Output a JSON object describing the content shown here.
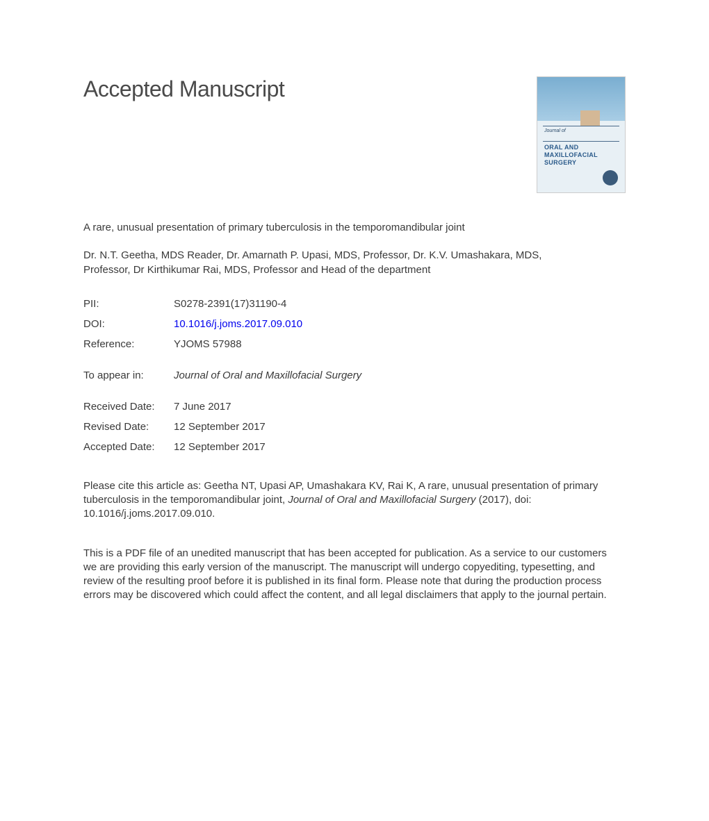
{
  "header": {
    "title": "Accepted Manuscript"
  },
  "cover": {
    "journal_of": "Journal of",
    "line1": "ORAL AND",
    "line2": "MAXILLOFACIAL",
    "line3": "SURGERY",
    "bg_gradient_top": "#7aaed1",
    "bg_gradient_mid": "#a8cde5",
    "bg_gradient_bottom": "#e8f0f5",
    "tab_color": "#d4b896",
    "text_color": "#2a5a8a"
  },
  "article": {
    "title": "A rare, unusual presentation of primary tuberculosis in the temporomandibular joint",
    "authors": "Dr. N.T. Geetha, MDS Reader, Dr. Amarnath P. Upasi, MDS, Professor, Dr. K.V. Umashakara, MDS, Professor, Dr Kirthikumar Rai, MDS, Professor and Head of the department"
  },
  "meta": {
    "pii_label": "PII:",
    "pii_value": "S0278-2391(17)31190-4",
    "doi_label": "DOI:",
    "doi_value": "10.1016/j.joms.2017.09.010",
    "ref_label": "Reference:",
    "ref_value": "YJOMS 57988"
  },
  "appear": {
    "label": "To appear in:",
    "journal": "Journal of Oral and Maxillofacial Surgery"
  },
  "dates": {
    "received_label": "Received Date:",
    "received_value": "7 June 2017",
    "revised_label": "Revised Date:",
    "revised_value": "12 September 2017",
    "accepted_label": "Accepted Date:",
    "accepted_value": "12 September 2017"
  },
  "citation": {
    "prefix": "Please cite this article as: Geetha NT, Upasi AP, Umashakara KV, Rai K, A rare, unusual presentation of primary tuberculosis in the temporomandibular joint, ",
    "journal": "Journal of Oral and Maxillofacial Surgery",
    "suffix": " (2017), doi: 10.1016/j.joms.2017.09.010."
  },
  "disclaimer": "This is a PDF file of an unedited manuscript that has been accepted for publication. As a service to our customers we are providing this early version of the manuscript. The manuscript will undergo copyediting, typesetting, and review of the resulting proof before it is published in its final form. Please note that during the production process errors may be discovered which could affect the content, and all legal disclaimers that apply to the journal pertain.",
  "colors": {
    "text": "#3a3a3a",
    "link": "#0000ee",
    "background": "#ffffff"
  },
  "typography": {
    "title_fontsize": 32,
    "body_fontsize": 15,
    "font_family": "Arial"
  }
}
